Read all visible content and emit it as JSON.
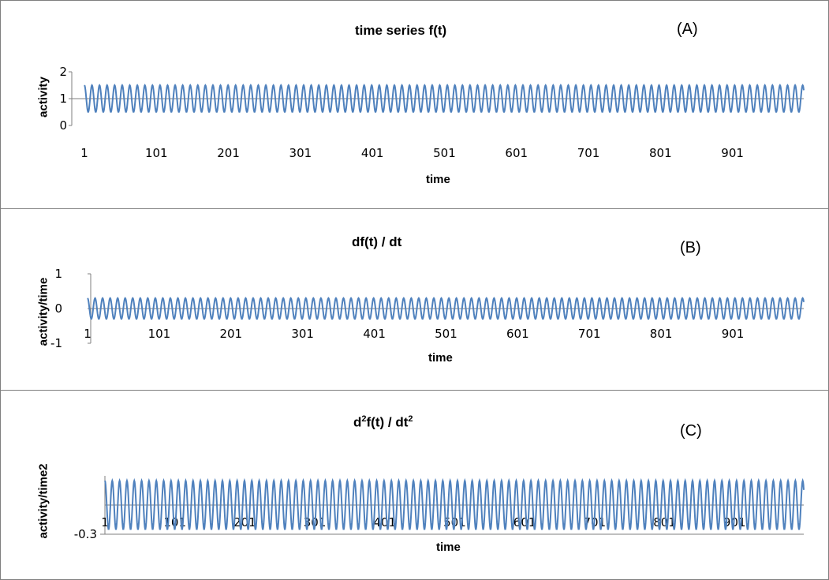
{
  "chart_data": [
    {
      "type": "line",
      "panel_letter": "(A)",
      "title": "time series f(t)",
      "xlabel": "time",
      "ylabel": "activity",
      "xlim": [
        1,
        1000
      ],
      "ylim": [
        0,
        2
      ],
      "yticks": [
        "0",
        "1",
        "2"
      ],
      "xticks": [
        "1",
        "101",
        "201",
        "301",
        "401",
        "501",
        "601",
        "701",
        "801",
        "901"
      ],
      "series": [
        {
          "mean": 1,
          "amplitude": 0.5,
          "period": 10.5,
          "x_start": 1,
          "x_end": 1000
        }
      ],
      "color": "#4f81bd",
      "grid": false
    },
    {
      "type": "line",
      "panel_letter": "(B)",
      "title": "df(t) / dt",
      "xlabel": "time",
      "ylabel": "activity/time",
      "xlim": [
        1,
        1000
      ],
      "ylim": [
        -1,
        1
      ],
      "yticks": [
        "-1",
        "0",
        "1"
      ],
      "xticks": [
        "1",
        "101",
        "201",
        "301",
        "401",
        "501",
        "601",
        "701",
        "801",
        "901"
      ],
      "series": [
        {
          "mean": 0,
          "amplitude": 0.3,
          "period": 10.5,
          "x_start": 1,
          "x_end": 1000
        }
      ],
      "color": "#4f81bd",
      "grid": false
    },
    {
      "type": "line",
      "panel_letter": "(C)",
      "title_main": "d",
      "title_sup1": "2",
      "title_mid": "f(t) / dt",
      "title_sup2": "2",
      "xlabel": "time",
      "ylabel": "activity/time2",
      "xlim": [
        1,
        1000
      ],
      "ylim": [
        -0.3,
        0.3
      ],
      "yticks": [
        "-0.3"
      ],
      "xticks": [
        "1",
        "101",
        "201",
        "301",
        "401",
        "501",
        "601",
        "701",
        "801",
        "901"
      ],
      "series": [
        {
          "mean": 0,
          "amplitude": 0.25,
          "period": 10.5,
          "x_start": 1,
          "x_end": 1000
        }
      ],
      "color": "#4f81bd",
      "grid": false
    }
  ]
}
